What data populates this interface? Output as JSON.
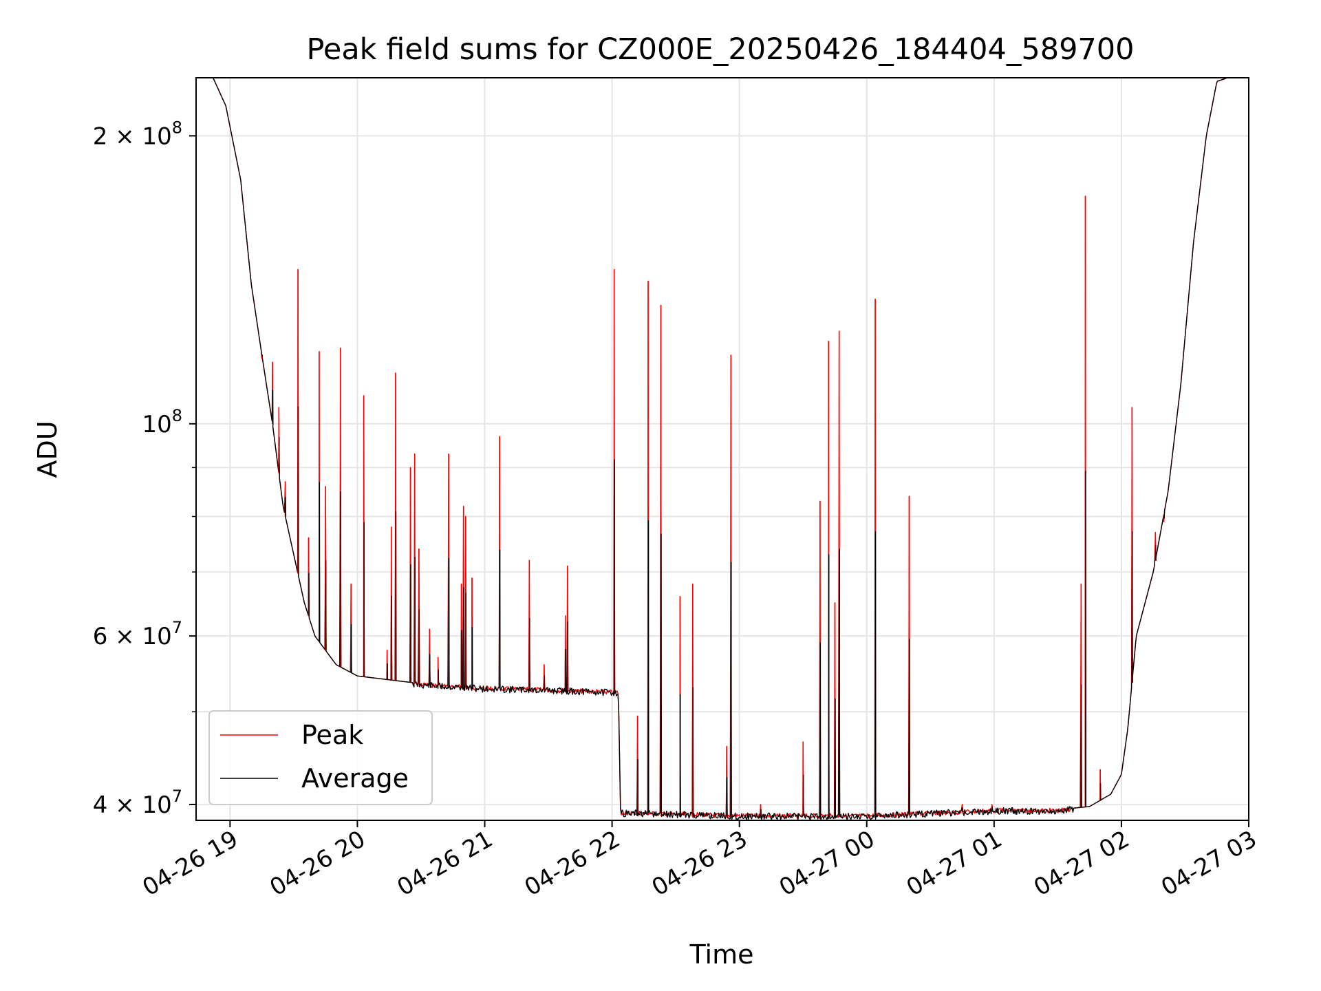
{
  "chart_data": {
    "type": "line",
    "title": "Peak field sums for CZ000E_20250426_184404_589700",
    "xlabel": "Time",
    "ylabel": "ADU",
    "x_scale": "time",
    "y_scale": "log",
    "xlim": [
      "2025-04-26 18:44",
      "2025-04-27 03:00"
    ],
    "ylim": [
      38500000,
      230000000
    ],
    "grid": true,
    "legend_position": "lower-left",
    "x_ticks": [
      {
        "value": "2025-04-26 19:00",
        "label": "04-26 19"
      },
      {
        "value": "2025-04-26 20:00",
        "label": "04-26 20"
      },
      {
        "value": "2025-04-26 21:00",
        "label": "04-26 21"
      },
      {
        "value": "2025-04-26 22:00",
        "label": "04-26 22"
      },
      {
        "value": "2025-04-26 23:00",
        "label": "04-26 23"
      },
      {
        "value": "2025-04-27 00:00",
        "label": "04-27 00"
      },
      {
        "value": "2025-04-27 01:00",
        "label": "04-27 01"
      },
      {
        "value": "2025-04-27 02:00",
        "label": "04-27 02"
      },
      {
        "value": "2025-04-27 03:00",
        "label": "04-27 03"
      }
    ],
    "y_major_ticks": [
      {
        "value": 40000000,
        "mantissa": "4",
        "exp": "7"
      },
      {
        "value": 60000000,
        "mantissa": "6",
        "exp": "7"
      },
      {
        "value": 100000000,
        "mantissa": "",
        "exp": "8"
      },
      {
        "value": 200000000,
        "mantissa": "2",
        "exp": "8"
      }
    ],
    "y_minor_gridlines": [
      50000000,
      70000000,
      80000000,
      90000000
    ],
    "series": [
      {
        "name": "Peak",
        "color": "#ff0000",
        "baseline": [
          [
            "2025-04-26 18:44",
            230000000
          ],
          [
            "2025-04-26 18:52",
            230000000
          ],
          [
            "2025-04-26 18:58",
            215000000
          ],
          [
            "2025-04-26 19:05",
            180000000
          ],
          [
            "2025-04-26 19:10",
            140000000
          ],
          [
            "2025-04-26 19:15",
            118000000
          ],
          [
            "2025-04-26 19:20",
            100000000
          ],
          [
            "2025-04-26 19:25",
            82000000
          ],
          [
            "2025-04-26 19:30",
            73000000
          ],
          [
            "2025-04-26 19:35",
            65000000
          ],
          [
            "2025-04-26 19:40",
            60000000
          ],
          [
            "2025-04-26 19:50",
            56000000
          ],
          [
            "2025-04-26 20:00",
            54500000
          ],
          [
            "2025-04-26 20:30",
            53500000
          ],
          [
            "2025-04-26 21:00",
            53000000
          ],
          [
            "2025-04-26 21:30",
            52800000
          ],
          [
            "2025-04-26 22:03",
            52500000
          ],
          [
            "2025-04-26 22:04",
            39300000
          ],
          [
            "2025-04-26 23:00",
            39000000
          ],
          [
            "2025-04-27 00:00",
            39000000
          ],
          [
            "2025-04-27 01:00",
            39500000
          ],
          [
            "2025-04-27 01:30",
            39500000
          ],
          [
            "2025-04-27 01:45",
            39800000
          ],
          [
            "2025-04-27 01:55",
            41000000
          ],
          [
            "2025-04-27 02:00",
            43000000
          ],
          [
            "2025-04-27 02:03",
            48000000
          ],
          [
            "2025-04-27 02:07",
            60000000
          ],
          [
            "2025-04-27 02:15",
            70000000
          ],
          [
            "2025-04-27 02:22",
            85000000
          ],
          [
            "2025-04-27 02:28",
            110000000
          ],
          [
            "2025-04-27 02:34",
            155000000
          ],
          [
            "2025-04-27 02:40",
            200000000
          ],
          [
            "2025-04-27 02:45",
            228000000
          ],
          [
            "2025-04-27 02:50",
            230000000
          ],
          [
            "2025-04-27 03:00",
            230000000
          ]
        ],
        "spikes": [
          [
            "2025-04-26 19:15",
            117000000
          ],
          [
            "2025-04-26 19:20",
            116000000
          ],
          [
            "2025-04-26 19:23",
            104000000
          ],
          [
            "2025-04-26 19:26",
            87000000
          ],
          [
            "2025-04-26 19:32",
            145000000
          ],
          [
            "2025-04-26 19:37",
            76000000
          ],
          [
            "2025-04-26 19:42",
            119000000
          ],
          [
            "2025-04-26 19:45",
            86000000
          ],
          [
            "2025-04-26 19:52",
            120000000
          ],
          [
            "2025-04-26 19:57",
            68000000
          ],
          [
            "2025-04-26 20:03",
            107000000
          ],
          [
            "2025-04-26 20:14",
            58000000
          ],
          [
            "2025-04-26 20:16",
            78000000
          ],
          [
            "2025-04-26 20:18",
            113000000
          ],
          [
            "2025-04-26 20:25",
            90000000
          ],
          [
            "2025-04-26 20:27",
            93000000
          ],
          [
            "2025-04-26 20:29",
            74000000
          ],
          [
            "2025-04-26 20:34",
            61000000
          ],
          [
            "2025-04-26 20:38",
            57000000
          ],
          [
            "2025-04-26 20:43",
            93000000
          ],
          [
            "2025-04-26 20:49",
            68000000
          ],
          [
            "2025-04-26 20:50",
            82000000
          ],
          [
            "2025-04-26 20:51",
            80000000
          ],
          [
            "2025-04-26 20:54",
            69000000
          ],
          [
            "2025-04-26 21:07",
            97000000
          ],
          [
            "2025-04-26 21:21",
            72000000
          ],
          [
            "2025-04-26 21:28",
            56000000
          ],
          [
            "2025-04-26 21:38",
            63000000
          ],
          [
            "2025-04-26 21:39",
            71000000
          ],
          [
            "2025-04-26 22:01",
            145000000
          ],
          [
            "2025-04-26 22:12",
            49500000
          ],
          [
            "2025-04-26 22:17",
            141000000
          ],
          [
            "2025-04-26 22:23",
            133000000
          ],
          [
            "2025-04-26 22:32",
            66000000
          ],
          [
            "2025-04-26 22:38",
            68000000
          ],
          [
            "2025-04-26 22:54",
            46000000
          ],
          [
            "2025-04-26 22:56",
            118000000
          ],
          [
            "2025-04-26 23:10",
            40000000
          ],
          [
            "2025-04-26 23:30",
            46500000
          ],
          [
            "2025-04-26 23:38",
            83000000
          ],
          [
            "2025-04-26 23:42",
            122000000
          ],
          [
            "2025-04-26 23:45",
            65000000
          ],
          [
            "2025-04-26 23:47",
            125000000
          ],
          [
            "2025-04-27 00:04",
            135000000
          ],
          [
            "2025-04-27 00:20",
            84000000
          ],
          [
            "2025-04-27 00:45",
            40000000
          ],
          [
            "2025-04-27 00:59",
            40000000
          ],
          [
            "2025-04-27 01:41",
            68000000
          ],
          [
            "2025-04-27 01:43",
            173000000
          ],
          [
            "2025-04-27 01:50",
            43500000
          ],
          [
            "2025-04-27 02:05",
            104000000
          ],
          [
            "2025-04-27 02:16",
            77000000
          ],
          [
            "2025-04-27 02:20",
            79000000
          ]
        ]
      },
      {
        "name": "Average",
        "color": "#000000",
        "spike_scale": 0.55
      }
    ]
  }
}
